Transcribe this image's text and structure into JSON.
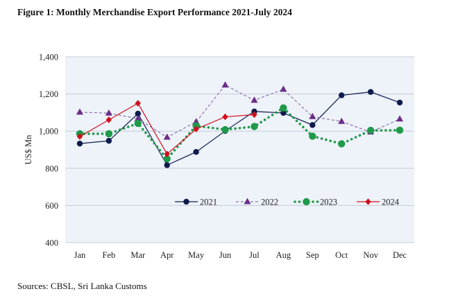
{
  "figure": {
    "title": "Figure 1: Monthly Merchandise Export Performance 2021-July 2024",
    "source": "Sources: CBSL, Sri Lanka Customs"
  },
  "chart_data": {
    "type": "line",
    "title": "Figure 1: Monthly Merchandise Export Performance 2021-July 2024",
    "xlabel": "",
    "ylabel": "US$ Mn",
    "ylim": [
      400,
      1400
    ],
    "yticks": [
      400,
      600,
      800,
      1000,
      1200,
      1400
    ],
    "ytick_labels": [
      "400",
      "600",
      "800",
      "1,000",
      "1,200",
      "1,400"
    ],
    "grid": true,
    "legend_position": "bottom-center inside plot",
    "categories": [
      "Jan",
      "Feb",
      "Mar",
      "Apr",
      "May",
      "Jun",
      "Jul",
      "Aug",
      "Sep",
      "Oct",
      "Nov",
      "Dec"
    ],
    "series": [
      {
        "name": "2021",
        "color": "#0d1b4c",
        "style": "solid",
        "marker": "circle",
        "values": [
          933,
          948,
          1094,
          817,
          888,
          1001,
          1106,
          1098,
          1033,
          1193,
          1211,
          1154
        ]
      },
      {
        "name": "2022",
        "color": "#6a2c8a",
        "style": "dashed",
        "marker": "triangle",
        "values": [
          1102,
          1097,
          1067,
          967,
          1050,
          1248,
          1166,
          1225,
          1078,
          1052,
          995,
          1065
        ]
      },
      {
        "name": "2023",
        "color": "#1f9a4a",
        "style": "dotted",
        "marker": "circle-large",
        "values": [
          986,
          986,
          1042,
          851,
          1029,
          1008,
          1025,
          1125,
          973,
          932,
          1004,
          1005
        ]
      },
      {
        "name": "2024",
        "color": "#d0101a",
        "style": "solid",
        "marker": "diamond",
        "values": [
          971,
          1061,
          1150,
          877,
          1011,
          1077,
          1089,
          null,
          null,
          null,
          null,
          null
        ]
      }
    ]
  }
}
